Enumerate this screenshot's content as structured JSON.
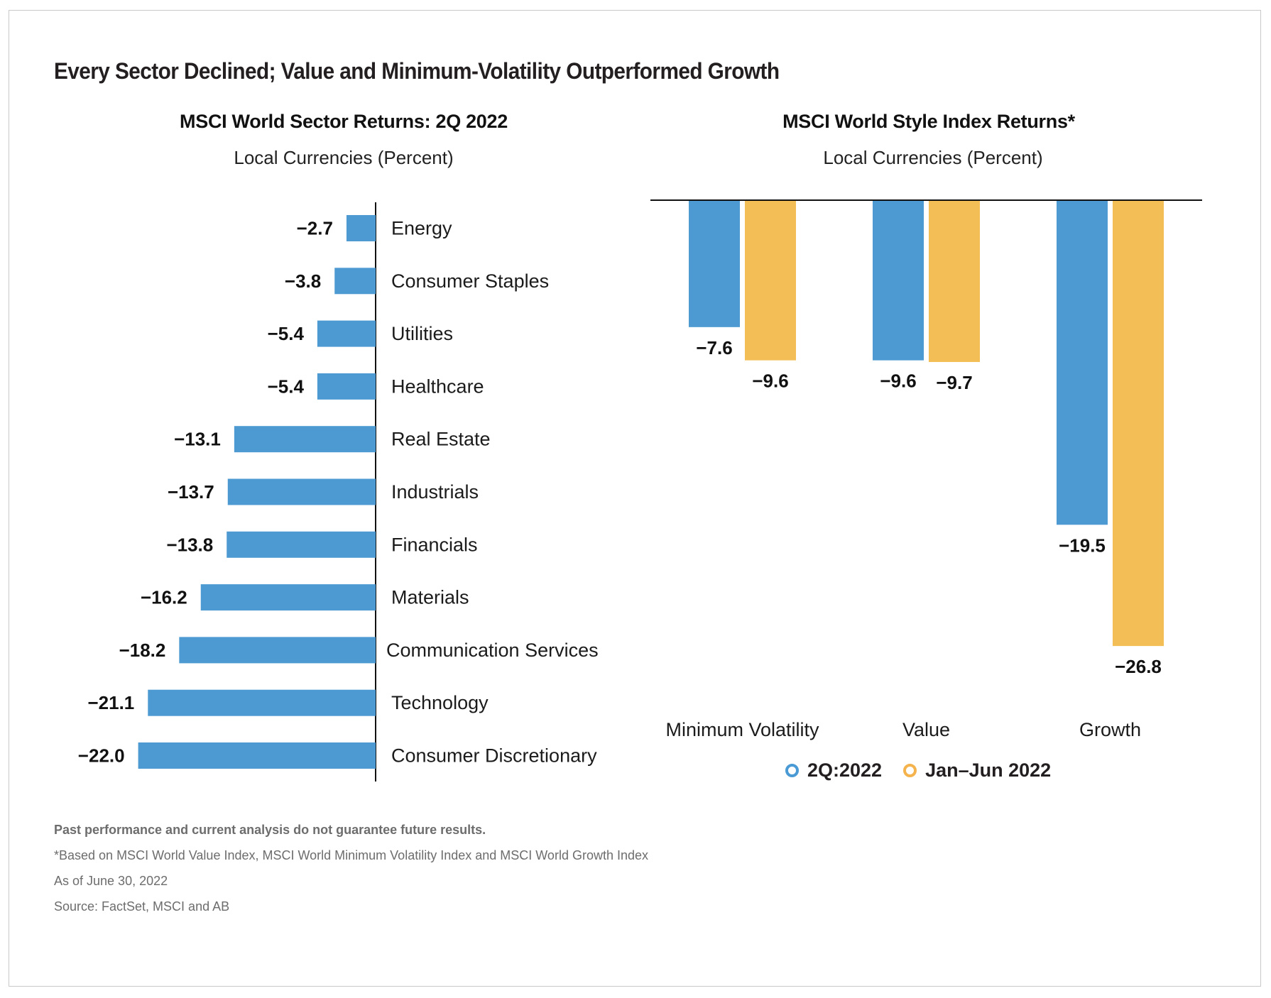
{
  "title": "Every Sector Declined; Value and Minimum-Volatility Outperformed Growth",
  "colors": {
    "series_2q": "#4d9ad2",
    "series_h1": "#f2be55",
    "legend_ring_2q": "#4a9bd5",
    "legend_ring_h1": "#f5b34d",
    "axis": "#111111"
  },
  "chart_data": [
    {
      "type": "bar",
      "orientation": "horizontal",
      "title": "MSCI World Sector Returns: 2Q 2022",
      "subtitle": "Local Currencies (Percent)",
      "xlabel": "",
      "ylabel": "",
      "grid": false,
      "categories": [
        "Energy",
        "Consumer Staples",
        "Utilities",
        "Healthcare",
        "Real Estate",
        "Industrials",
        "Financials",
        "Materials",
        "Communication Services",
        "Technology",
        "Consumer Discretionary"
      ],
      "values": [
        -2.7,
        -3.8,
        -5.4,
        -5.4,
        -13.1,
        -13.7,
        -13.8,
        -16.2,
        -18.2,
        -21.1,
        -22.0
      ],
      "value_labels": [
        "−2.7",
        "−3.8",
        "−5.4",
        "−5.4",
        "−13.1",
        "−13.7",
        "−13.8",
        "−16.2",
        "−18.2",
        "−21.1",
        "−22.0"
      ],
      "xlim": [
        -22.0,
        0
      ]
    },
    {
      "type": "bar",
      "orientation": "vertical",
      "title": "MSCI World Style Index Returns*",
      "subtitle": "Local Currencies (Percent)",
      "xlabel": "",
      "ylabel": "",
      "grid": false,
      "categories": [
        "Minimum Volatility",
        "Value",
        "Growth"
      ],
      "series": [
        {
          "name": "2Q:2022",
          "values": [
            -7.6,
            -9.6,
            -19.5
          ],
          "labels": [
            "−7.6",
            "−9.6",
            "−19.5"
          ]
        },
        {
          "name": "Jan–Jun 2022",
          "values": [
            -9.6,
            -9.7,
            -26.8
          ],
          "labels": [
            "−9.6",
            "−9.7",
            "−26.8"
          ]
        }
      ],
      "ylim": [
        -26.8,
        0
      ],
      "legend": {
        "position": "bottom",
        "entries": [
          "2Q:2022",
          "Jan–Jun 2022"
        ]
      }
    }
  ],
  "footnotes": {
    "disclaimer": "Past performance and current analysis do not guarantee future results.",
    "note": "*Based on MSCI World Value Index, MSCI World Minimum Volatility Index and MSCI World Growth Index",
    "as_of": "As of June 30, 2022",
    "source": "Source: FactSet, MSCI and AB"
  }
}
